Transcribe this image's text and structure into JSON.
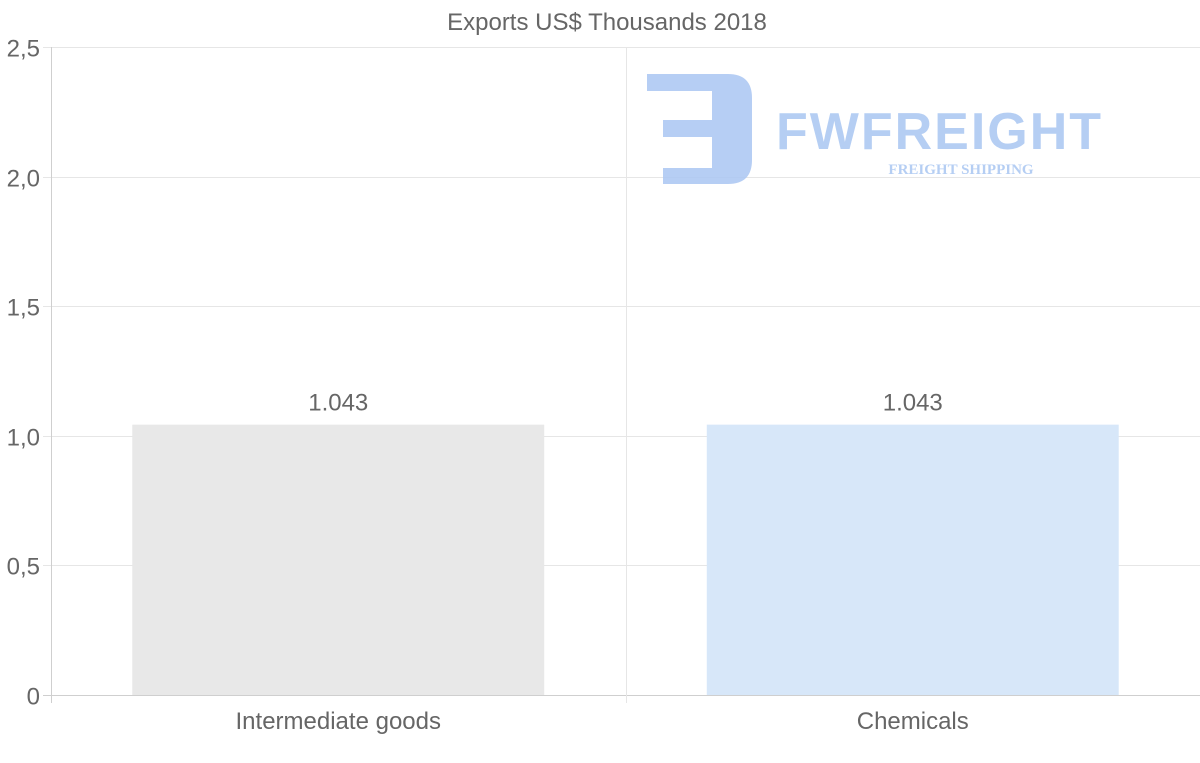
{
  "chart_data": {
    "type": "bar",
    "title": "Exports US$ Thousands 2018",
    "categories": [
      "Intermediate goods",
      "Chemicals"
    ],
    "values": [
      1.043,
      1.043
    ],
    "data_labels": [
      "1.043",
      "1.043"
    ],
    "bar_colors": [
      "#e8e8e8",
      "#d7e7f9"
    ],
    "ylim": [
      0,
      2.5
    ],
    "yticks": [
      0,
      0.5,
      1.0,
      1.5,
      2.0,
      2.5
    ],
    "ytick_labels": [
      "0",
      "0,5",
      "1,0",
      "1,5",
      "2,0",
      "2,5"
    ],
    "xlabel": "",
    "ylabel": "",
    "grid": true,
    "legend": "none"
  },
  "watermark": {
    "brand": "FWFREIGHT",
    "tagline": "FREIGHT SHIPPING",
    "color": "#a9c6f2"
  }
}
